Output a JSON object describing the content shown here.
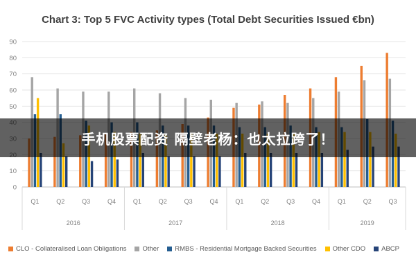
{
  "chart_data": {
    "type": "bar",
    "title": "Chart 3: Top 5 FVC Activity types (Total Debt Securities Issued €bn)",
    "ylim": [
      0,
      90
    ],
    "yticks": [
      0,
      10,
      20,
      30,
      40,
      50,
      60,
      70,
      80,
      90
    ],
    "grid": true,
    "legend_position": "bottom",
    "categories": [
      "Q1",
      "Q2",
      "Q3",
      "Q4",
      "Q1",
      "Q2",
      "Q3",
      "Q4",
      "Q1",
      "Q2",
      "Q3",
      "Q4",
      "Q1",
      "Q2",
      "Q3"
    ],
    "year_groups": [
      {
        "label": "2016",
        "count": 4
      },
      {
        "label": "2017",
        "count": 4
      },
      {
        "label": "2018",
        "count": 4
      },
      {
        "label": "2019",
        "count": 3
      }
    ],
    "series": [
      {
        "name": "CLO - Collateralised Loan Obligations",
        "color": "#ED7D31",
        "values": [
          30,
          31,
          32,
          33,
          34,
          35,
          39,
          43,
          49,
          51,
          57,
          61,
          68,
          75,
          83
        ]
      },
      {
        "name": "Other",
        "color": "#A5A5A5",
        "values": [
          68,
          61,
          59,
          59,
          61,
          58,
          55,
          54,
          52,
          53,
          52,
          55,
          59,
          66,
          67
        ]
      },
      {
        "name": "RMBS - Residential Mortgage Backed Securities",
        "color": "#255E91",
        "values": [
          45,
          45,
          41,
          40,
          40,
          38,
          38,
          38,
          37,
          37,
          38,
          37,
          37,
          42,
          41
        ]
      },
      {
        "name": "Other CDO",
        "color": "#FFC000",
        "values": [
          55,
          27,
          38,
          34,
          33,
          33,
          33,
          33,
          33,
          33,
          33,
          34,
          34,
          34,
          33
        ]
      },
      {
        "name": "ABCP",
        "color": "#264478",
        "values": [
          21,
          19,
          16,
          17,
          21,
          19,
          19,
          19,
          21,
          21,
          21,
          21,
          23,
          25,
          25
        ]
      }
    ]
  },
  "overlay": {
    "text": "手机股票配资 隔壁老杨：也太拉跨了！"
  }
}
